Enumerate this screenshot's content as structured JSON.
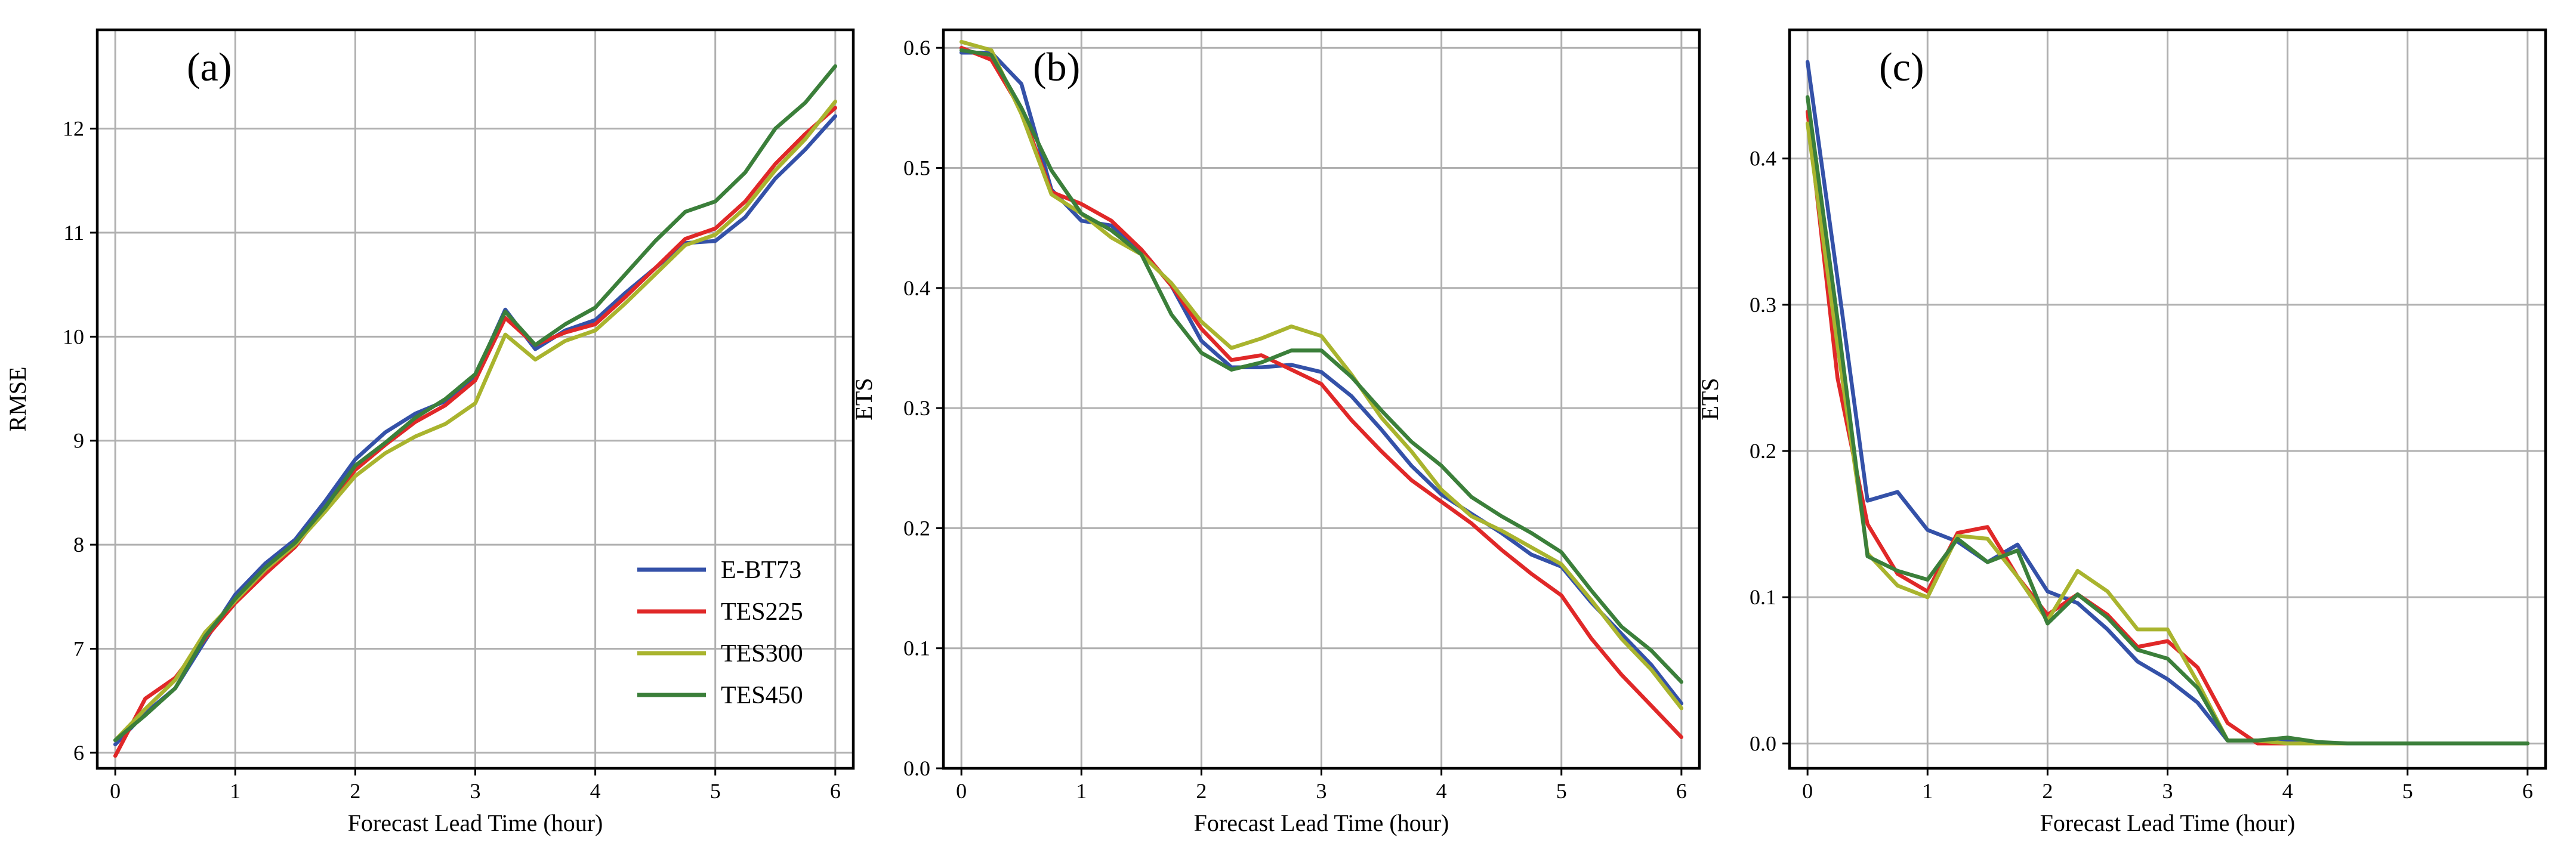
{
  "chart_data": [
    {
      "type": "line",
      "panel_label": "(a)",
      "title": "",
      "xlabel": "Forecast Lead Time (hour)",
      "ylabel": "RMSE",
      "xlim": [
        -0.15,
        6.15
      ],
      "ylim": [
        5.85,
        12.95
      ],
      "xticks": [
        0,
        1,
        2,
        3,
        4,
        5,
        6
      ],
      "xtick_labels": [
        "0",
        "1",
        "2",
        "3",
        "4",
        "5",
        "6"
      ],
      "yticks": [
        6,
        7,
        8,
        9,
        10,
        11,
        12
      ],
      "ytick_labels": [
        "6",
        "7",
        "8",
        "9",
        "10",
        "11",
        "12"
      ],
      "grid": true,
      "legend": {
        "show": true,
        "location": "lower-right"
      },
      "x": [
        0,
        0.25,
        0.5,
        0.75,
        1.0,
        1.25,
        1.5,
        1.75,
        2.0,
        2.25,
        2.5,
        2.75,
        3.0,
        3.25,
        3.5,
        3.75,
        4.0,
        4.25,
        4.5,
        4.75,
        5.0,
        5.25,
        5.5,
        5.75,
        6.0
      ],
      "series": [
        {
          "name": "E-BT73",
          "color": "#3451a8",
          "values": [
            6.08,
            6.38,
            6.62,
            7.08,
            7.52,
            7.82,
            8.05,
            8.42,
            8.82,
            9.08,
            9.26,
            9.38,
            9.62,
            10.26,
            9.88,
            10.06,
            10.16,
            10.42,
            10.66,
            10.9,
            10.92,
            11.15,
            11.52,
            11.8,
            12.12
          ]
        },
        {
          "name": "TES225",
          "color": "#e02828",
          "values": [
            5.97,
            6.52,
            6.72,
            7.1,
            7.44,
            7.72,
            7.98,
            8.36,
            8.72,
            8.96,
            9.18,
            9.34,
            9.58,
            10.18,
            9.92,
            10.04,
            10.12,
            10.38,
            10.66,
            10.94,
            11.04,
            11.3,
            11.66,
            11.95,
            12.2
          ]
        },
        {
          "name": "TES300",
          "color": "#a9b42e",
          "values": [
            6.12,
            6.42,
            6.7,
            7.16,
            7.46,
            7.76,
            8.0,
            8.32,
            8.66,
            8.88,
            9.04,
            9.16,
            9.36,
            10.02,
            9.78,
            9.96,
            10.06,
            10.32,
            10.6,
            10.88,
            10.98,
            11.24,
            11.6,
            11.9,
            12.26
          ]
        },
        {
          "name": "TES450",
          "color": "#3b7f3a",
          "values": [
            6.12,
            6.36,
            6.62,
            7.12,
            7.48,
            7.78,
            8.02,
            8.36,
            8.76,
            8.98,
            9.22,
            9.4,
            9.64,
            10.24,
            9.92,
            10.12,
            10.28,
            10.6,
            10.92,
            11.2,
            11.3,
            11.58,
            12.0,
            12.25,
            12.6
          ]
        }
      ]
    },
    {
      "type": "line",
      "panel_label": "(b)",
      "title": "",
      "xlabel": "Forecast Lead Time (hour)",
      "ylabel": "ETS",
      "xlim": [
        -0.15,
        6.15
      ],
      "ylim": [
        0.0,
        0.615
      ],
      "xticks": [
        0,
        1,
        2,
        3,
        4,
        5,
        6
      ],
      "xtick_labels": [
        "0",
        "1",
        "2",
        "3",
        "4",
        "5",
        "6"
      ],
      "yticks": [
        0.0,
        0.1,
        0.2,
        0.3,
        0.4,
        0.5,
        0.6
      ],
      "ytick_labels": [
        "0.0",
        "0.1",
        "0.2",
        "0.3",
        "0.4",
        "0.5",
        "0.6"
      ],
      "grid": true,
      "legend": {
        "show": false
      },
      "x": [
        0,
        0.25,
        0.5,
        0.75,
        1.0,
        1.25,
        1.5,
        1.75,
        2.0,
        2.25,
        2.5,
        2.75,
        3.0,
        3.25,
        3.5,
        3.75,
        4.0,
        4.25,
        4.5,
        4.75,
        5.0,
        5.25,
        5.5,
        5.75,
        6.0
      ],
      "series": [
        {
          "name": "E-BT73",
          "color": "#3451a8",
          "values": [
            0.596,
            0.596,
            0.57,
            0.482,
            0.456,
            0.452,
            0.432,
            0.402,
            0.356,
            0.334,
            0.334,
            0.336,
            0.33,
            0.31,
            0.282,
            0.252,
            0.228,
            0.212,
            0.196,
            0.178,
            0.168,
            0.138,
            0.112,
            0.086,
            0.054
          ]
        },
        {
          "name": "TES225",
          "color": "#e02828",
          "values": [
            0.6,
            0.59,
            0.548,
            0.48,
            0.47,
            0.456,
            0.432,
            0.402,
            0.366,
            0.34,
            0.344,
            0.332,
            0.32,
            0.29,
            0.264,
            0.24,
            0.222,
            0.204,
            0.182,
            0.162,
            0.144,
            0.108,
            0.078,
            0.052,
            0.026
          ]
        },
        {
          "name": "TES300",
          "color": "#a9b42e",
          "values": [
            0.605,
            0.598,
            0.545,
            0.478,
            0.462,
            0.442,
            0.428,
            0.404,
            0.372,
            0.35,
            0.358,
            0.368,
            0.36,
            0.328,
            0.292,
            0.264,
            0.232,
            0.21,
            0.198,
            0.184,
            0.17,
            0.14,
            0.108,
            0.082,
            0.05
          ]
        },
        {
          "name": "TES450",
          "color": "#3b7f3a",
          "values": [
            0.598,
            0.594,
            0.55,
            0.498,
            0.462,
            0.448,
            0.428,
            0.378,
            0.346,
            0.332,
            0.338,
            0.348,
            0.348,
            0.326,
            0.298,
            0.272,
            0.252,
            0.226,
            0.21,
            0.196,
            0.18,
            0.148,
            0.118,
            0.098,
            0.072
          ]
        }
      ]
    },
    {
      "type": "line",
      "panel_label": "(c)",
      "title": "",
      "xlabel": "Forecast Lead Time (hour)",
      "ylabel": "ETS",
      "xlim": [
        -0.15,
        6.15
      ],
      "ylim": [
        -0.017,
        0.488
      ],
      "xticks": [
        0,
        1,
        2,
        3,
        4,
        5,
        6
      ],
      "xtick_labels": [
        "0",
        "1",
        "2",
        "3",
        "4",
        "5",
        "6"
      ],
      "yticks": [
        0.0,
        0.1,
        0.2,
        0.3,
        0.4
      ],
      "ytick_labels": [
        "0.0",
        "0.1",
        "0.2",
        "0.3",
        "0.4"
      ],
      "grid": true,
      "legend": {
        "show": false
      },
      "x": [
        0,
        0.25,
        0.5,
        0.75,
        1.0,
        1.25,
        1.5,
        1.75,
        2.0,
        2.25,
        2.5,
        2.75,
        3.0,
        3.25,
        3.5,
        3.75,
        4.0,
        4.25,
        4.5,
        4.75,
        5.0,
        5.25,
        5.5,
        5.75,
        6.0
      ],
      "series": [
        {
          "name": "E-BT73",
          "color": "#3451a8",
          "values": [
            0.466,
            0.318,
            0.166,
            0.172,
            0.146,
            0.138,
            0.124,
            0.136,
            0.104,
            0.096,
            0.078,
            0.056,
            0.044,
            0.028,
            0.002,
            0.002,
            0.002,
            0.0,
            0.0,
            0.0,
            0.0,
            0.0,
            0.0,
            0.0,
            0.0
          ]
        },
        {
          "name": "TES225",
          "color": "#e02828",
          "values": [
            0.432,
            0.25,
            0.15,
            0.116,
            0.104,
            0.144,
            0.148,
            0.114,
            0.088,
            0.102,
            0.088,
            0.066,
            0.07,
            0.052,
            0.014,
            0.0,
            0.0,
            0.0,
            0.0,
            0.0,
            0.0,
            0.0,
            0.0,
            0.0,
            0.0
          ]
        },
        {
          "name": "TES300",
          "color": "#a9b42e",
          "values": [
            0.424,
            0.272,
            0.13,
            0.108,
            0.1,
            0.142,
            0.14,
            0.114,
            0.084,
            0.118,
            0.104,
            0.078,
            0.078,
            0.042,
            0.002,
            0.002,
            0.0,
            0.0,
            0.0,
            0.0,
            0.0,
            0.0,
            0.0,
            0.0,
            0.0
          ]
        },
        {
          "name": "TES450",
          "color": "#3b7f3a",
          "values": [
            0.442,
            0.29,
            0.128,
            0.118,
            0.112,
            0.14,
            0.124,
            0.132,
            0.082,
            0.102,
            0.086,
            0.064,
            0.058,
            0.038,
            0.002,
            0.002,
            0.004,
            0.001,
            0.0,
            0.0,
            0.0,
            0.0,
            0.0,
            0.0,
            0.0
          ]
        }
      ]
    }
  ]
}
